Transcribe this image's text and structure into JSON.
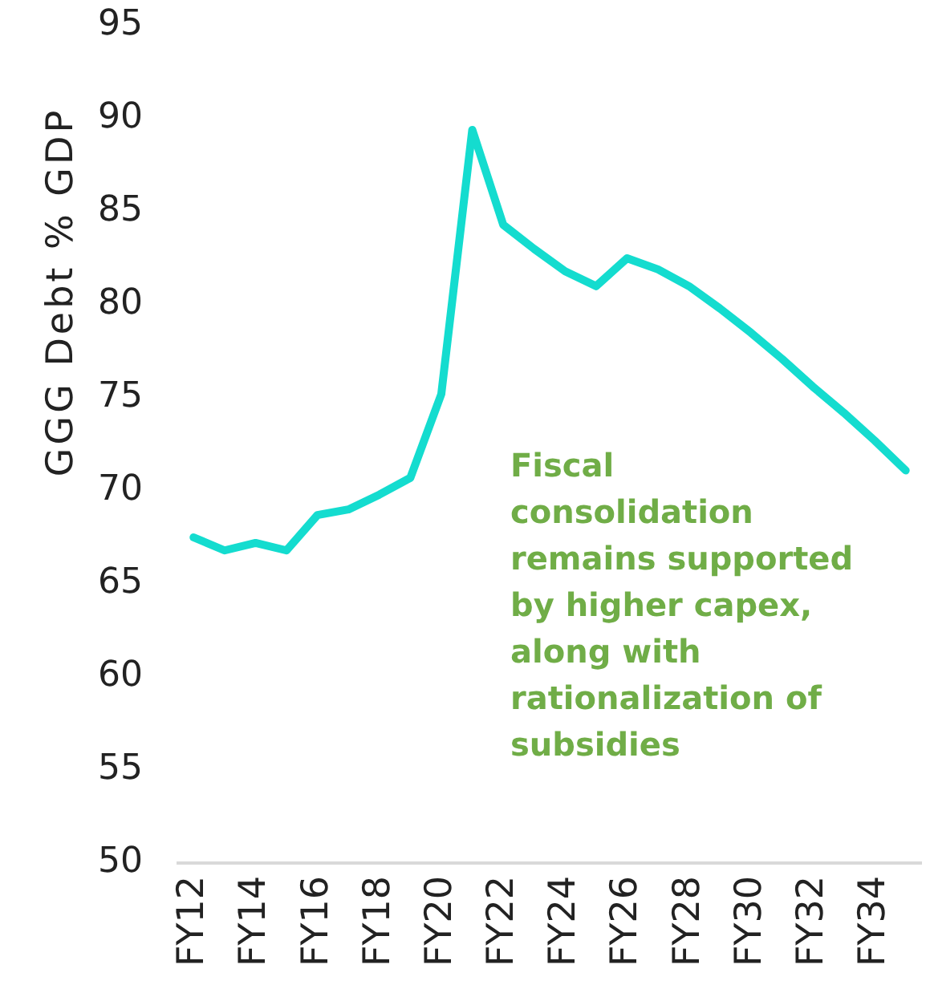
{
  "chart_data": {
    "type": "line",
    "ylabel": "GGG Debt % GDP",
    "categories": [
      "FY12",
      null,
      "FY14",
      null,
      "FY16",
      null,
      "FY18",
      null,
      "FY20",
      null,
      "FY22",
      null,
      "FY24",
      null,
      "FY26",
      null,
      "FY28",
      null,
      "FY30",
      null,
      "FY32",
      null,
      "FY34",
      null
    ],
    "series": [
      {
        "color": "#14dccf",
        "values": [
          67.5,
          66.8,
          67.2,
          66.8,
          68.7,
          69.0,
          69.8,
          70.7,
          75.2,
          89.4,
          84.3,
          83.0,
          81.8,
          81.0,
          82.5,
          81.9,
          81.0,
          79.8,
          78.5,
          77.1,
          75.6,
          74.2,
          72.7,
          71.1
        ]
      }
    ],
    "ylim": [
      50,
      95
    ],
    "yticks": [
      50,
      55,
      60,
      65,
      70,
      75,
      80,
      85,
      90,
      95
    ],
    "marker": "none",
    "annotations": [
      "Fiscal consolidation remains supported by higher capex, along with rationalization of subsidies"
    ]
  }
}
